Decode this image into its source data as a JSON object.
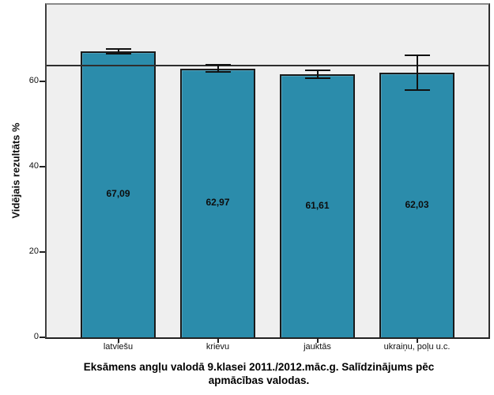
{
  "chart_data": {
    "type": "bar",
    "categories": [
      "latviešu",
      "krievu",
      "jauktās",
      "ukraiņu, poļu u.c."
    ],
    "values": [
      67.09,
      62.97,
      61.61,
      62.03
    ],
    "value_labels": [
      "67,09",
      "62,97",
      "61,61",
      "62,03"
    ],
    "error_low": [
      66.5,
      62.3,
      60.7,
      57.9
    ],
    "error_high": [
      67.7,
      64.0,
      62.6,
      66.2
    ],
    "reference_line": 63.7,
    "yticks": [
      0,
      20,
      40,
      60
    ],
    "ytick_labels": [
      "0",
      "20",
      "40",
      "60"
    ],
    "ylim": [
      0,
      78
    ],
    "ylabel": "Vidējais rezultāts %",
    "xlabel": "",
    "title": "Eksāmens angļu valodā 9.klasei 2011./2012.māc.g. Salīdzinājums pēc apmācības valodas.",
    "title_lines": [
      "Eksāmens angļu valodā 9.klasei 2011./2012.māc.g. Salīdzinājums pēc",
      "apmācības valodas."
    ],
    "legend": "none",
    "grid": "off",
    "colors": {
      "bar_fill": "#2b8cab",
      "bar_border": "#1a1a1a",
      "plot_background": "#efefef",
      "figure_background": "#ffffff",
      "reference_line": "#2e2e2e",
      "error_bar": "#111111",
      "text": "#0d0d0d"
    }
  }
}
